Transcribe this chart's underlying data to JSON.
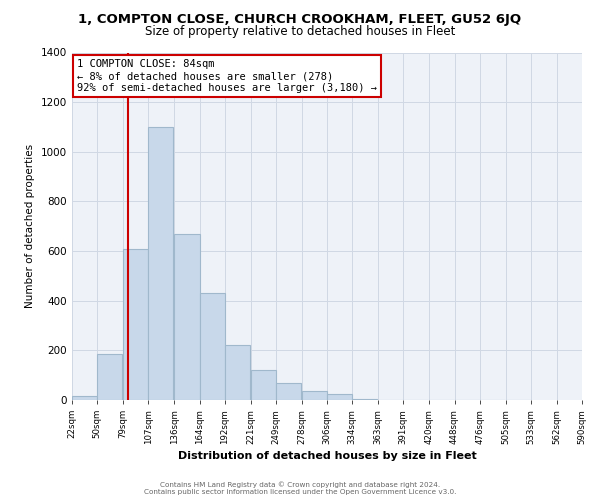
{
  "title": "1, COMPTON CLOSE, CHURCH CROOKHAM, FLEET, GU52 6JQ",
  "subtitle": "Size of property relative to detached houses in Fleet",
  "xlabel": "Distribution of detached houses by size in Fleet",
  "ylabel": "Number of detached properties",
  "bar_values": [
    15,
    185,
    610,
    1100,
    670,
    430,
    220,
    120,
    70,
    35,
    25,
    5,
    2,
    0,
    0,
    0,
    0,
    0
  ],
  "bar_left_edges": [
    22,
    50,
    79,
    107,
    136,
    164,
    192,
    221,
    249,
    278,
    306,
    334,
    363,
    391,
    420,
    448,
    476,
    505
  ],
  "bin_width": 28,
  "tick_labels": [
    "22sqm",
    "50sqm",
    "79sqm",
    "107sqm",
    "136sqm",
    "164sqm",
    "192sqm",
    "221sqm",
    "249sqm",
    "278sqm",
    "306sqm",
    "334sqm",
    "363sqm",
    "391sqm",
    "420sqm",
    "448sqm",
    "476sqm",
    "505sqm",
    "533sqm",
    "562sqm",
    "590sqm"
  ],
  "tick_positions": [
    22,
    50,
    79,
    107,
    136,
    164,
    192,
    221,
    249,
    278,
    306,
    334,
    363,
    391,
    420,
    448,
    476,
    505,
    533,
    562,
    590
  ],
  "bar_color": "#c8d8ea",
  "bar_edge_color": "#a0b8cc",
  "vline_x": 84,
  "vline_color": "#cc0000",
  "annotation_text": "1 COMPTON CLOSE: 84sqm\n← 8% of detached houses are smaller (278)\n92% of semi-detached houses are larger (3,180) →",
  "annotation_box_color": "#ffffff",
  "annotation_box_edge": "#cc0000",
  "ylim": [
    0,
    1400
  ],
  "yticks": [
    0,
    200,
    400,
    600,
    800,
    1000,
    1200,
    1400
  ],
  "grid_color": "#d0d8e4",
  "footer_line1": "Contains HM Land Registry data © Crown copyright and database right 2024.",
  "footer_line2": "Contains public sector information licensed under the Open Government Licence v3.0.",
  "bg_color": "#eef2f8",
  "title_fontsize": 9.5,
  "subtitle_fontsize": 8.5
}
